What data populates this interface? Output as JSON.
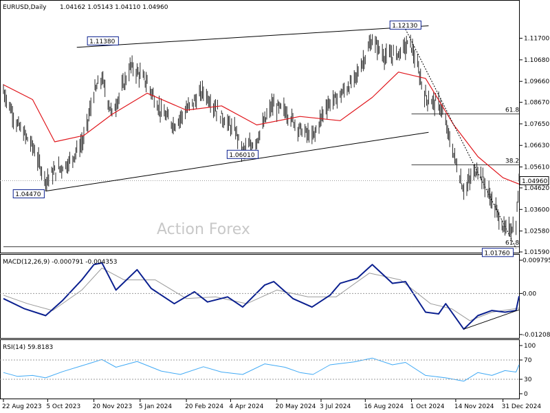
{
  "colors": {
    "price_bar": "#2a2a2a",
    "ma_line": "#e0151b",
    "macd_line": "#0a1f8f",
    "macd_signal": "#9a9a9a",
    "rsi_line": "#3fa9f5",
    "trendline": "#000000",
    "panel_border": "#000000",
    "dotted_level": "#9a9a9a",
    "watermark": "#c8c8c8",
    "label_box": "#0a1f8f"
  },
  "watermark": "Action Forex",
  "chart_data": [
    {
      "type": "line",
      "panel": "price",
      "title": "EURUSD,Daily",
      "ohlc_header": "1.04162 1.05143 1.04110 1.04960",
      "ohlc": {
        "open": 1.04162,
        "high": 1.05143,
        "low": 1.0411,
        "close": 1.0496
      },
      "ylim": [
        1.0159,
        1.1237
      ],
      "y_ticks": [
        "1.11700",
        "1.10680",
        "1.09660",
        "1.08670",
        "1.07650",
        "1.06630",
        "1.05610",
        "1.04620",
        "1.03600",
        "1.02580",
        "1.01590"
      ],
      "y_tick_values": [
        1.117,
        1.1068,
        1.0966,
        1.0867,
        1.0765,
        1.0663,
        1.0561,
        1.0462,
        1.036,
        1.0258,
        1.0159
      ],
      "current_price_label": "1.04960",
      "current_price": 1.0496,
      "x_ticks": [
        "22 Aug 2023",
        "5 Oct 2023",
        "20 Nov 2023",
        "5 Jan 2024",
        "20 Feb 2024",
        "4 Apr 2024",
        "20 May 2024",
        "3 Jul 2024",
        "16 Aug 2024",
        "1 Oct 2024",
        "14 Nov 2024",
        "31 Dec 2024"
      ],
      "x_tick_dates": [
        "2023-08-22",
        "2023-10-05",
        "2023-11-20",
        "2024-01-05",
        "2024-02-20",
        "2024-04-04",
        "2024-05-20",
        "2024-07-03",
        "2024-08-16",
        "2024-10-01",
        "2024-11-14",
        "2024-12-31"
      ],
      "series": [
        {
          "kind": "price_close",
          "x": [
            "2023-08-22",
            "2023-09-05",
            "2023-09-20",
            "2023-10-03",
            "2023-10-12",
            "2023-10-26",
            "2023-11-10",
            "2023-11-20",
            "2023-11-28",
            "2023-12-08",
            "2023-12-27",
            "2024-01-12",
            "2024-01-26",
            "2024-02-08",
            "2024-02-20",
            "2024-03-08",
            "2024-03-26",
            "2024-04-10",
            "2024-04-16",
            "2024-04-30",
            "2024-05-15",
            "2024-05-28",
            "2024-06-12",
            "2024-06-25",
            "2024-07-08",
            "2024-07-22",
            "2024-08-05",
            "2024-08-23",
            "2024-09-05",
            "2024-09-18",
            "2024-09-30",
            "2024-10-15",
            "2024-10-30",
            "2024-11-12",
            "2024-11-22",
            "2024-12-06",
            "2024-12-20",
            "2025-01-02",
            "2025-01-13",
            "2025-01-16"
          ],
          "values": [
            1.092,
            1.076,
            1.066,
            1.05,
            1.054,
            1.058,
            1.069,
            1.091,
            1.098,
            1.081,
            1.104,
            1.096,
            1.082,
            1.076,
            1.083,
            1.092,
            1.08,
            1.072,
            1.063,
            1.069,
            1.085,
            1.083,
            1.074,
            1.07,
            1.085,
            1.09,
            1.097,
            1.116,
            1.108,
            1.11,
            1.115,
            1.089,
            1.085,
            1.062,
            1.045,
            1.056,
            1.04,
            1.026,
            1.028,
            1.0496
          ]
        },
        {
          "kind": "moving_average",
          "x": [
            "2023-08-22",
            "2023-09-20",
            "2023-10-12",
            "2023-11-10",
            "2023-12-08",
            "2024-01-12",
            "2024-02-20",
            "2024-03-26",
            "2024-04-30",
            "2024-06-12",
            "2024-07-22",
            "2024-08-23",
            "2024-09-18",
            "2024-10-15",
            "2024-11-12",
            "2024-12-06",
            "2024-12-31",
            "2025-01-16"
          ],
          "values": [
            1.095,
            1.088,
            1.068,
            1.071,
            1.081,
            1.091,
            1.083,
            1.085,
            1.076,
            1.08,
            1.078,
            1.089,
            1.101,
            1.098,
            1.076,
            1.061,
            1.051,
            1.048
          ]
        }
      ],
      "annotations": [
        {
          "label": "1.11380",
          "value": 1.1138,
          "date": "2023-11-29"
        },
        {
          "label": "1.12130",
          "value": 1.1213,
          "date": "2024-09-25"
        },
        {
          "label": "1.06010",
          "value": 1.0601,
          "date": "2024-04-16"
        },
        {
          "label": "1.04470",
          "value": 1.0447,
          "date": "2023-10-03"
        },
        {
          "label": "1.01760",
          "value": 1.0176,
          "date": "2025-01-13"
        }
      ],
      "fib_levels": [
        {
          "label": "61.8",
          "value": 1.0812
        },
        {
          "label": "38.2",
          "value": 1.0571
        },
        {
          "label": "61.8",
          "value": 1.0183
        }
      ],
      "trendlines": [
        {
          "from": [
            "2023-11-03",
            1.1127
          ],
          "to": [
            "2024-10-18",
            1.1229
          ]
        },
        {
          "from": [
            "2023-10-03",
            1.0447
          ],
          "to": [
            "2024-10-18",
            1.0725
          ]
        },
        {
          "from": [
            "2024-09-25",
            1.1213
          ],
          "to": [
            "2025-01-13",
            1.0176
          ],
          "dashed": true
        }
      ]
    },
    {
      "type": "line",
      "panel": "macd",
      "title": "MACD(12,26,9) -0.000791 -0.004353",
      "ylim": [
        -0.01208,
        0.0098
      ],
      "y_ticks": [
        "0.009795",
        "0.00",
        "-0.012081"
      ],
      "y_tick_values": [
        0.009795,
        0.0,
        -0.012081
      ],
      "series": [
        {
          "kind": "macd",
          "x": [
            "2023-08-22",
            "2023-09-12",
            "2023-10-03",
            "2023-10-20",
            "2023-11-08",
            "2023-11-20",
            "2023-11-28",
            "2023-12-12",
            "2024-01-02",
            "2024-01-16",
            "2024-02-08",
            "2024-02-28",
            "2024-03-12",
            "2024-04-01",
            "2024-04-16",
            "2024-05-08",
            "2024-05-17",
            "2024-06-05",
            "2024-06-24",
            "2024-07-12",
            "2024-07-22",
            "2024-08-08",
            "2024-08-23",
            "2024-09-12",
            "2024-09-25",
            "2024-10-15",
            "2024-10-28",
            "2024-11-04",
            "2024-11-22",
            "2024-12-06",
            "2024-12-20",
            "2025-01-02",
            "2025-01-13",
            "2025-01-16"
          ],
          "values": [
            -0.0015,
            -0.0045,
            -0.0065,
            -0.002,
            0.004,
            0.0085,
            0.009,
            0.001,
            0.007,
            0.0015,
            -0.003,
            0.0005,
            -0.0025,
            -0.001,
            -0.004,
            0.0025,
            0.0035,
            -0.0015,
            -0.004,
            -0.0005,
            0.003,
            0.0045,
            0.0085,
            0.003,
            0.0035,
            -0.0055,
            -0.006,
            -0.003,
            -0.0105,
            -0.0065,
            -0.005,
            -0.0055,
            -0.005,
            -0.0008
          ]
        },
        {
          "kind": "signal",
          "x": [
            "2023-08-22",
            "2023-09-15",
            "2023-10-10",
            "2023-11-08",
            "2023-11-28",
            "2023-12-20",
            "2024-01-20",
            "2024-02-20",
            "2024-03-20",
            "2024-04-20",
            "2024-05-20",
            "2024-06-20",
            "2024-07-18",
            "2024-08-20",
            "2024-09-20",
            "2024-10-20",
            "2024-11-10",
            "2024-11-28",
            "2024-12-20",
            "2025-01-16"
          ],
          "values": [
            -0.0005,
            -0.003,
            -0.005,
            0.001,
            0.0075,
            0.004,
            0.004,
            -0.0015,
            -0.001,
            -0.003,
            0.001,
            -0.001,
            -0.001,
            0.006,
            0.004,
            -0.003,
            -0.0045,
            -0.008,
            -0.0055,
            -0.0043
          ]
        }
      ],
      "trendlines": [
        {
          "from": [
            "2024-11-22",
            -0.0105
          ],
          "to": [
            "2025-01-16",
            -0.0048
          ]
        }
      ]
    },
    {
      "type": "line",
      "panel": "rsi",
      "title": "RSI(14) 59.8183",
      "ylim": [
        0,
        100
      ],
      "y_ticks": [
        "100",
        "70",
        "30",
        "0"
      ],
      "y_tick_values": [
        100,
        70,
        30,
        0
      ],
      "dotted_levels": [
        70,
        30
      ],
      "series": [
        {
          "kind": "rsi",
          "x": [
            "2023-08-22",
            "2023-09-05",
            "2023-09-20",
            "2023-10-03",
            "2023-10-20",
            "2023-11-08",
            "2023-11-28",
            "2023-12-12",
            "2024-01-02",
            "2024-01-26",
            "2024-02-14",
            "2024-03-08",
            "2024-03-26",
            "2024-04-16",
            "2024-05-08",
            "2024-05-28",
            "2024-06-12",
            "2024-06-25",
            "2024-07-12",
            "2024-08-05",
            "2024-08-23",
            "2024-09-12",
            "2024-09-25",
            "2024-10-15",
            "2024-11-04",
            "2024-11-22",
            "2024-12-06",
            "2024-12-20",
            "2025-01-02",
            "2025-01-13",
            "2025-01-16"
          ],
          "values": [
            44,
            36,
            38,
            33,
            46,
            58,
            71,
            55,
            67,
            47,
            40,
            56,
            45,
            40,
            62,
            55,
            44,
            40,
            60,
            66,
            74,
            60,
            65,
            38,
            33,
            26,
            44,
            38,
            48,
            45,
            60
          ]
        }
      ]
    }
  ]
}
